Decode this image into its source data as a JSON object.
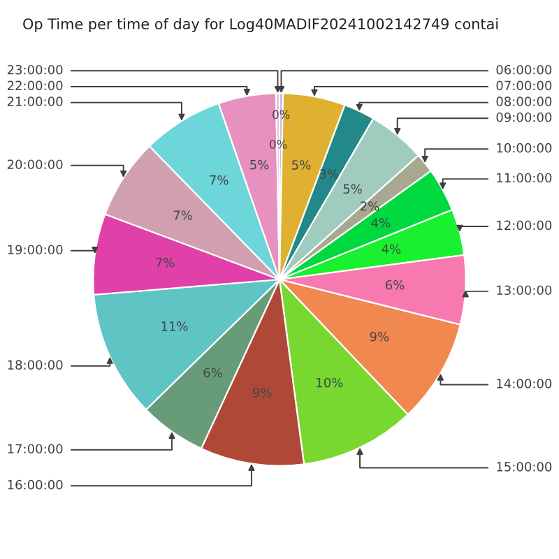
{
  "chart_data": {
    "type": "pie",
    "title": "Op Time per time of day for Log40MADIF20241002142749 contai",
    "categories": [
      "06:00:00",
      "07:00:00",
      "08:00:00",
      "09:00:00",
      "10:00:00",
      "11:00:00",
      "12:00:00",
      "13:00:00",
      "14:00:00",
      "15:00:00",
      "16:00:00",
      "17:00:00",
      "18:00:00",
      "19:00:00",
      "20:00:00",
      "21:00:00",
      "22:00:00",
      "23:00:00"
    ],
    "values": [
      0.3,
      5.4,
      2.7,
      5.0,
      1.7,
      3.8,
      4.0,
      6.0,
      9.0,
      10.0,
      9.0,
      5.8,
      11.0,
      7.0,
      7.0,
      7.0,
      5.0,
      0.3
    ],
    "value_labels": [
      "0%",
      "5%",
      "3%",
      "5%",
      "2%",
      "4%",
      "4%",
      "6%",
      "9%",
      "10%",
      "9%",
      "6%",
      "11%",
      "7%",
      "7%",
      "7%",
      "5%",
      "0%"
    ],
    "colors": [
      "#c8a8e8",
      "#e0b030",
      "#22888a",
      "#a0ccc0",
      "#a8a890",
      "#00d840",
      "#18f030",
      "#f878b0",
      "#f08850",
      "#78d830",
      "#b04838",
      "#689c78",
      "#5ec4c4",
      "#e040a8",
      "#d0a0b0",
      "#6cd6da",
      "#e890c0",
      "#e0c0e0"
    ],
    "legend": false
  }
}
